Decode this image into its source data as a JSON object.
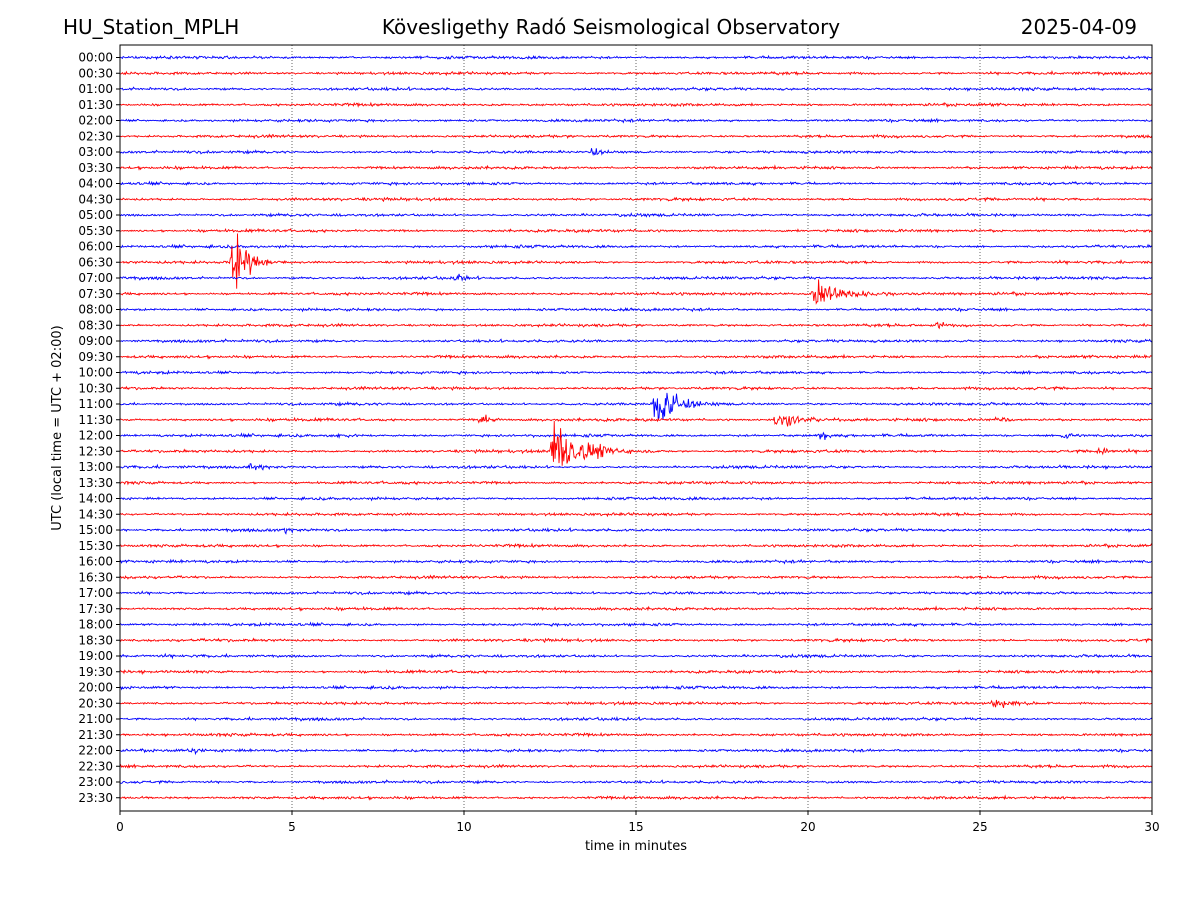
{
  "header": {
    "station": "HU_Station_MPLH",
    "observatory": "Kövesligethy Radó Seismological Observatory",
    "date": "2025-04-09"
  },
  "chart_data": {
    "type": "line",
    "title": "Kövesligethy Radó Seismological Observatory",
    "xlabel": "time in minutes",
    "ylabel": "UTC (local time = UTC + 02:00)",
    "xlim": [
      0,
      30
    ],
    "x_ticks": [
      0,
      5,
      10,
      15,
      20,
      25,
      30
    ],
    "grid": "vertical dotted lines at x ticks",
    "series_colors": [
      "#0000ff",
      "#ff0000"
    ],
    "rows": [
      "00:00",
      "00:30",
      "01:00",
      "01:30",
      "02:00",
      "02:30",
      "03:00",
      "03:30",
      "04:00",
      "04:30",
      "05:00",
      "05:30",
      "06:00",
      "06:30",
      "07:00",
      "07:30",
      "08:00",
      "08:30",
      "09:00",
      "09:30",
      "10:00",
      "10:30",
      "11:00",
      "11:30",
      "12:00",
      "12:30",
      "13:00",
      "13:30",
      "14:00",
      "14:30",
      "15:00",
      "15:30",
      "16:00",
      "16:30",
      "17:00",
      "17:30",
      "18:00",
      "18:30",
      "19:00",
      "19:30",
      "20:00",
      "20:30",
      "21:00",
      "21:30",
      "22:00",
      "22:30",
      "23:00",
      "23:30"
    ],
    "events": [
      {
        "row": "03:00",
        "minute": 13.7,
        "amplitude": 0.8,
        "duration": 0.4
      },
      {
        "row": "06:30",
        "minute": 3.3,
        "amplitude": 3.5,
        "duration": 0.8
      },
      {
        "row": "07:00",
        "minute": 9.8,
        "amplitude": 0.6,
        "duration": 0.4
      },
      {
        "row": "07:30",
        "minute": 20.2,
        "amplitude": 1.4,
        "duration": 2.0
      },
      {
        "row": "08:30",
        "minute": 23.8,
        "amplitude": 0.8,
        "duration": 0.2
      },
      {
        "row": "11:00",
        "minute": 15.6,
        "amplitude": 3.6,
        "duration": 0.9
      },
      {
        "row": "11:30",
        "minute": 10.5,
        "amplitude": 0.8,
        "duration": 0.5
      },
      {
        "row": "11:30",
        "minute": 19.1,
        "amplitude": 1.3,
        "duration": 1.2
      },
      {
        "row": "11:30",
        "minute": 25.5,
        "amplitude": 0.5,
        "duration": 0.6
      },
      {
        "row": "12:00",
        "minute": 6.2,
        "amplitude": 0.4,
        "duration": 0.8
      },
      {
        "row": "12:00",
        "minute": 20.4,
        "amplitude": 0.7,
        "duration": 0.3
      },
      {
        "row": "12:00",
        "minute": 27.4,
        "amplitude": 0.5,
        "duration": 0.6
      },
      {
        "row": "12:30",
        "minute": 12.6,
        "amplitude": 3.6,
        "duration": 1.5
      },
      {
        "row": "12:30",
        "minute": 28.5,
        "amplitude": 0.5,
        "duration": 0.5
      },
      {
        "row": "13:00",
        "minute": 3.8,
        "amplitude": 0.5,
        "duration": 1.2
      },
      {
        "row": "15:00",
        "minute": 4.8,
        "amplitude": 0.4,
        "duration": 0.8
      },
      {
        "row": "20:30",
        "minute": 25.4,
        "amplitude": 0.7,
        "duration": 1.2
      },
      {
        "row": "22:00",
        "minute": 2.1,
        "amplitude": 0.5,
        "duration": 0.4
      }
    ]
  }
}
